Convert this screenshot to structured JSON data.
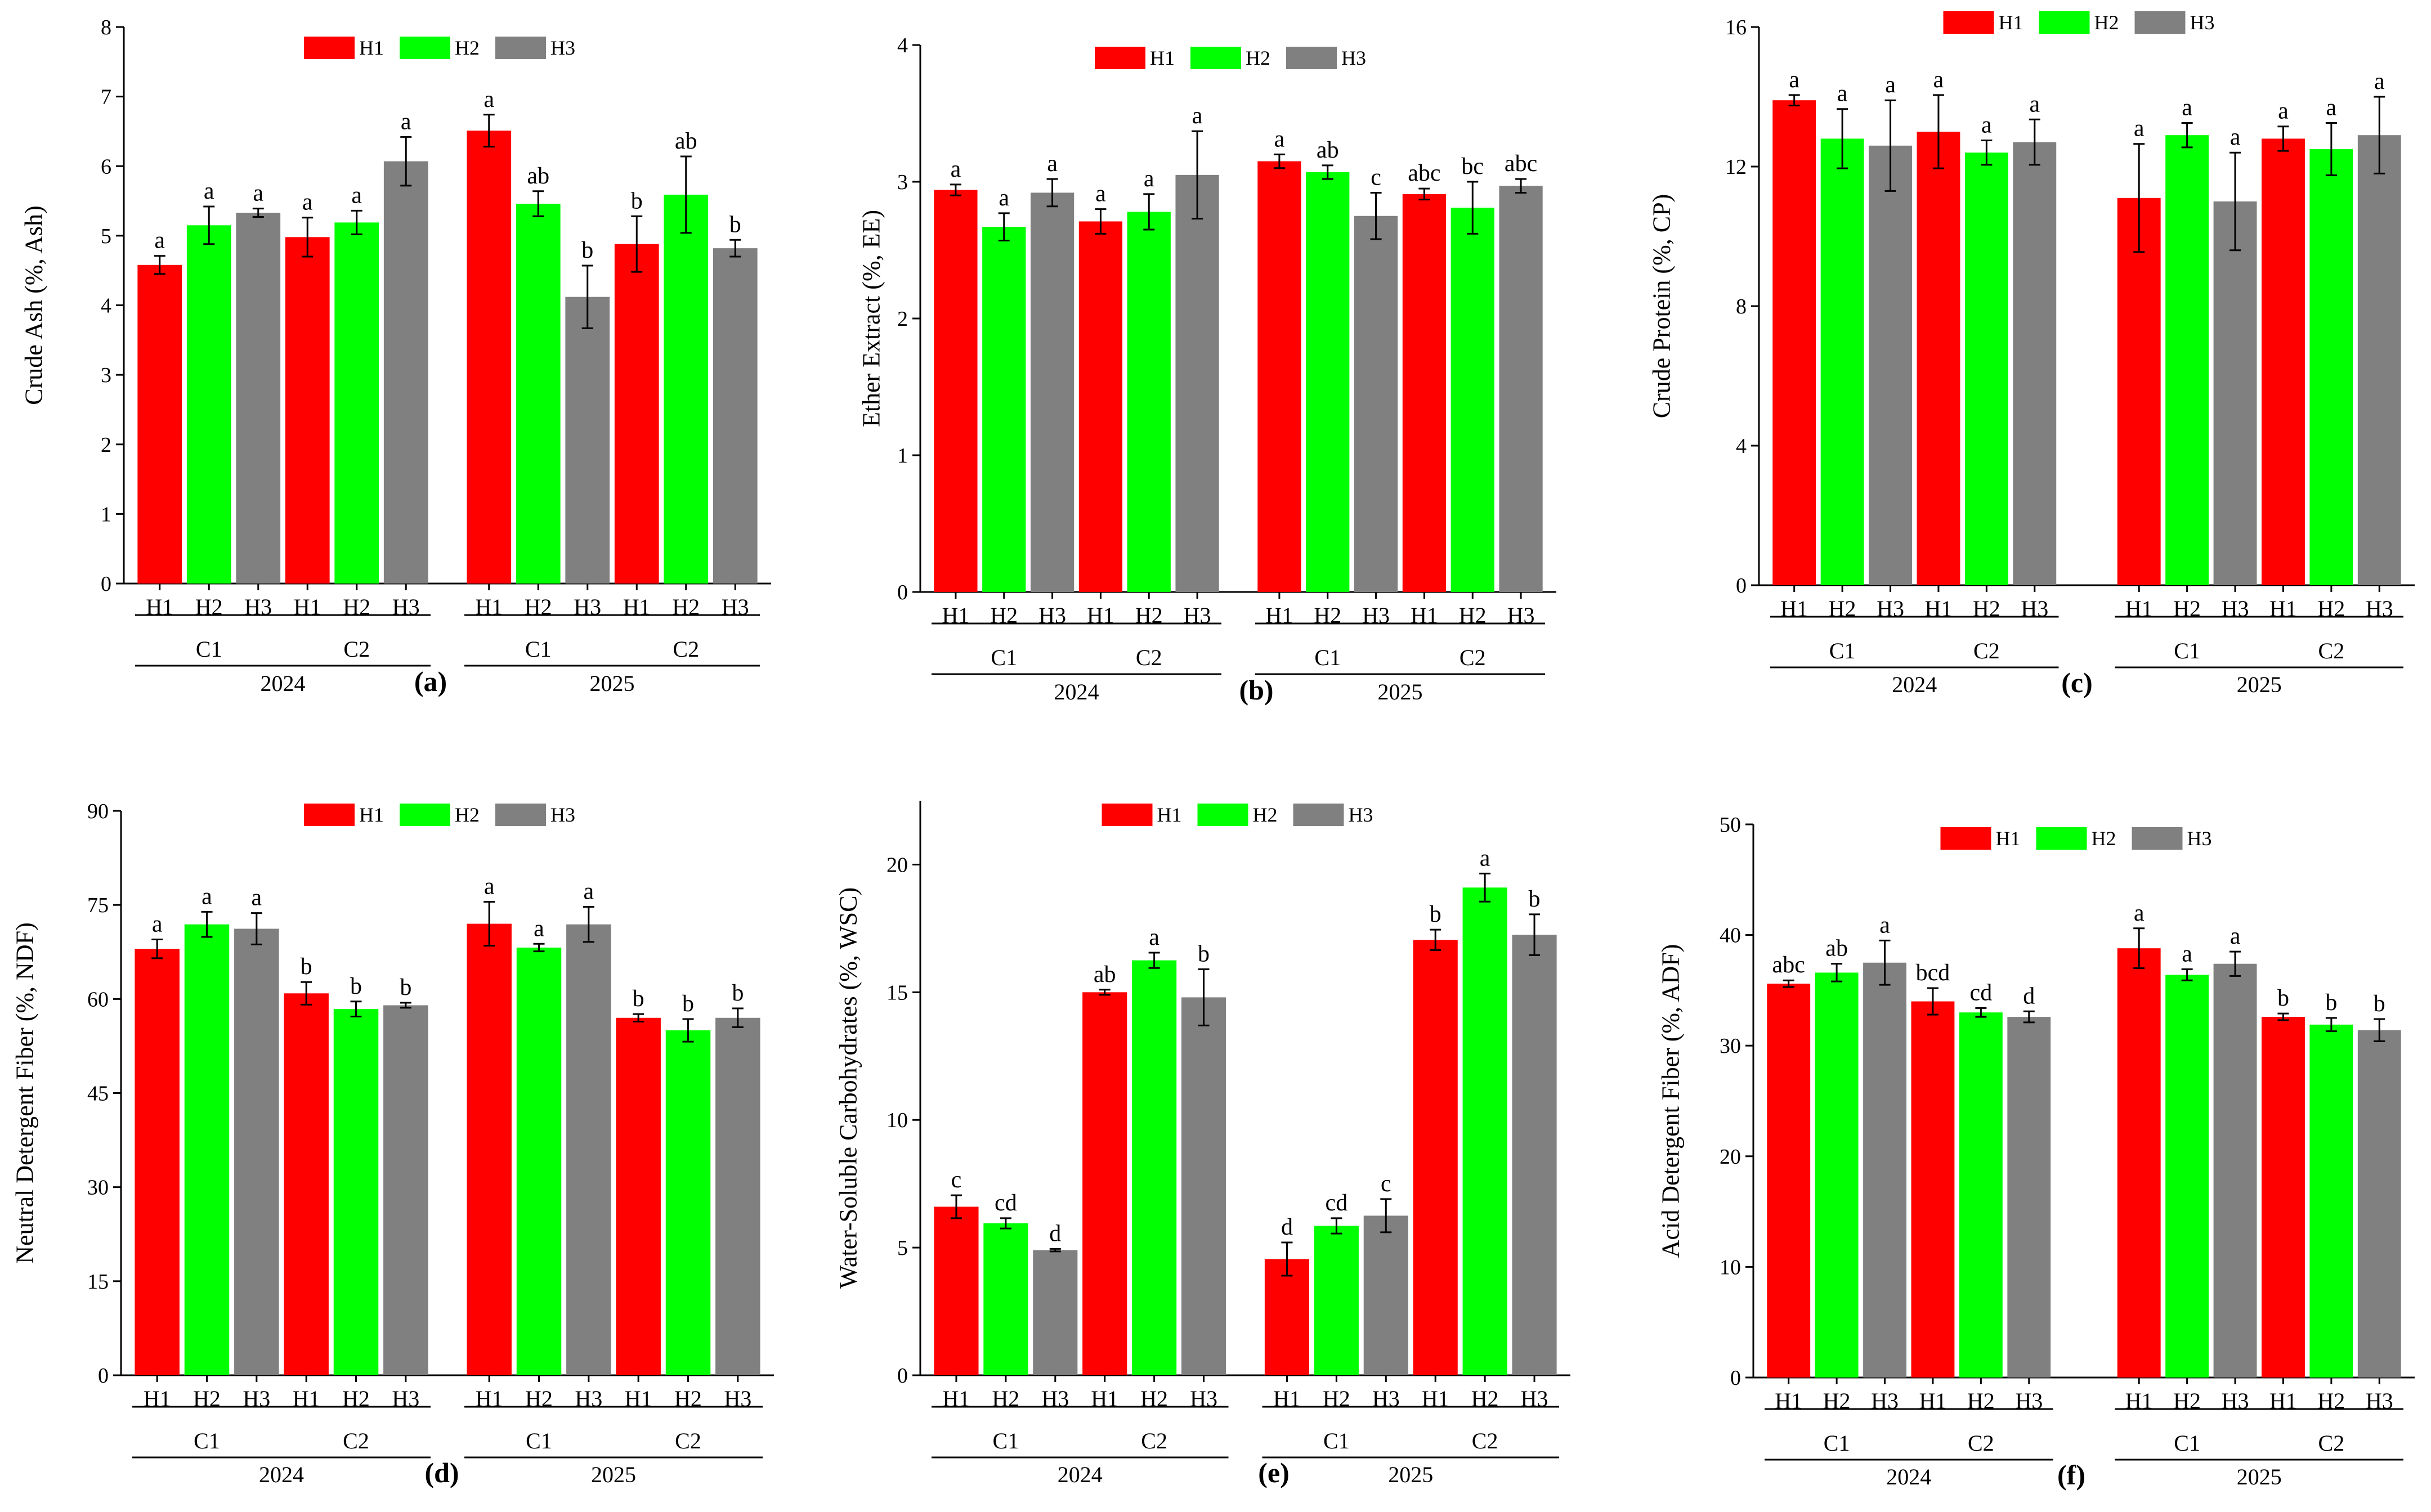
{
  "colors": {
    "H1": "#ff0000",
    "H2": "#00ff00",
    "H3": "#808080"
  },
  "chart_data": [
    {
      "type": "bar",
      "panel_label": "(a)",
      "ylabel": "Crude Ash (%, Ash)",
      "ylim": [
        0,
        8
      ],
      "yticks": [
        "0",
        "1",
        "2",
        "3",
        "4",
        "5",
        "6",
        "7",
        "8"
      ],
      "legend": [
        "H1",
        "H2",
        "H3"
      ],
      "years": [
        "2024",
        "2025"
      ],
      "cuttings": [
        "C1",
        "C2"
      ],
      "categories": [
        "H1",
        "H2",
        "H3"
      ],
      "groups": [
        {
          "year": "2024",
          "cutting": "C1",
          "values": [
            4.58,
            5.15,
            5.33
          ],
          "errors": [
            0.13,
            0.27,
            0.06
          ],
          "letters": [
            "a",
            "a",
            "a"
          ]
        },
        {
          "year": "2024",
          "cutting": "C2",
          "values": [
            4.98,
            5.19,
            6.07
          ],
          "errors": [
            0.28,
            0.17,
            0.35
          ],
          "letters": [
            "a",
            "a",
            "a"
          ]
        },
        {
          "year": "2025",
          "cutting": "C1",
          "values": [
            6.51,
            5.46,
            4.12
          ],
          "errors": [
            0.23,
            0.18,
            0.45
          ],
          "letters": [
            "a",
            "ab",
            "b"
          ]
        },
        {
          "year": "2025",
          "cutting": "C2",
          "values": [
            4.88,
            5.59,
            4.82
          ],
          "errors": [
            0.4,
            0.55,
            0.12
          ],
          "letters": [
            "b",
            "ab",
            "b"
          ]
        }
      ]
    },
    {
      "type": "bar",
      "panel_label": "(b)",
      "ylabel": "Ether Extract (%, EE)",
      "ylim": [
        0,
        4
      ],
      "yticks": [
        "0",
        "1",
        "2",
        "3",
        "4"
      ],
      "legend": [
        "H1",
        "H2",
        "H3"
      ],
      "years": [
        "2024",
        "2025"
      ],
      "cuttings": [
        "C1",
        "C2"
      ],
      "categories": [
        "H1",
        "H2",
        "H3"
      ],
      "groups": [
        {
          "year": "2024",
          "cutting": "C1",
          "values": [
            2.94,
            2.67,
            2.92
          ],
          "errors": [
            0.04,
            0.1,
            0.1
          ],
          "letters": [
            "a",
            "a",
            "a"
          ]
        },
        {
          "year": "2024",
          "cutting": "C2",
          "values": [
            2.71,
            2.78,
            3.05
          ],
          "errors": [
            0.09,
            0.13,
            0.32
          ],
          "letters": [
            "a",
            "a",
            "a"
          ]
        },
        {
          "year": "2025",
          "cutting": "C1",
          "values": [
            3.15,
            3.07,
            2.75
          ],
          "errors": [
            0.05,
            0.05,
            0.17
          ],
          "letters": [
            "a",
            "ab",
            "c"
          ]
        },
        {
          "year": "2025",
          "cutting": "C2",
          "values": [
            2.91,
            2.81,
            2.97
          ],
          "errors": [
            0.04,
            0.19,
            0.05
          ],
          "letters": [
            "abc",
            "bc",
            "abc"
          ]
        }
      ]
    },
    {
      "type": "bar",
      "panel_label": "(c)",
      "ylabel": "Crude Protein (%, CP)",
      "ylim": [
        0,
        16
      ],
      "yticks": [
        "0",
        "4",
        "8",
        "12",
        "16"
      ],
      "legend": [
        "H1",
        "H2",
        "H3"
      ],
      "years": [
        "2024",
        "2025"
      ],
      "cuttings": [
        "C1",
        "C2"
      ],
      "categories": [
        "H1",
        "H2",
        "H3"
      ],
      "groups": [
        {
          "year": "2024",
          "cutting": "C1",
          "values": [
            13.9,
            12.8,
            12.6
          ],
          "errors": [
            0.15,
            0.85,
            1.3
          ],
          "letters": [
            "a",
            "a",
            "a"
          ]
        },
        {
          "year": "2024",
          "cutting": "C2",
          "values": [
            13.0,
            12.4,
            12.7
          ],
          "errors": [
            1.05,
            0.35,
            0.65
          ],
          "letters": [
            "a",
            "a",
            "a"
          ]
        },
        {
          "year": "2025",
          "cutting": "C1",
          "values": [
            11.1,
            12.9,
            11.0
          ],
          "errors": [
            1.55,
            0.35,
            1.4
          ],
          "letters": [
            "a",
            "a",
            "a"
          ]
        },
        {
          "year": "2025",
          "cutting": "C2",
          "values": [
            12.8,
            12.5,
            12.9
          ],
          "errors": [
            0.35,
            0.75,
            1.1
          ],
          "letters": [
            "a",
            "a",
            "a"
          ]
        }
      ]
    },
    {
      "type": "bar",
      "panel_label": "(d)",
      "ylabel": "Neutral Detergent Fiber (%, NDF)",
      "ylim": [
        0,
        90
      ],
      "yticks": [
        "0",
        "15",
        "30",
        "45",
        "60",
        "75",
        "90"
      ],
      "legend": [
        "H1",
        "H2",
        "H3"
      ],
      "years": [
        "2024",
        "2025"
      ],
      "cuttings": [
        "C1",
        "C2"
      ],
      "categories": [
        "H1",
        "H2",
        "H3"
      ],
      "groups": [
        {
          "year": "2024",
          "cutting": "C1",
          "values": [
            68.0,
            71.9,
            71.2
          ],
          "errors": [
            1.5,
            2.0,
            2.5
          ],
          "letters": [
            "a",
            "a",
            "a"
          ]
        },
        {
          "year": "2024",
          "cutting": "C2",
          "values": [
            60.9,
            58.4,
            59.0
          ],
          "errors": [
            1.8,
            1.2,
            0.4
          ],
          "letters": [
            "b",
            "b",
            "b"
          ]
        },
        {
          "year": "2025",
          "cutting": "C1",
          "values": [
            72.0,
            68.2,
            71.9
          ],
          "errors": [
            3.5,
            0.6,
            2.8
          ],
          "letters": [
            "a",
            "a",
            "a"
          ]
        },
        {
          "year": "2025",
          "cutting": "C2",
          "values": [
            57.0,
            55.0,
            57.0
          ],
          "errors": [
            0.6,
            1.8,
            1.5
          ],
          "letters": [
            "b",
            "b",
            "b"
          ]
        }
      ]
    },
    {
      "type": "bar",
      "panel_label": "(e)",
      "ylabel": "Water-Soluble Carbohydrates (%, WSC)",
      "ylim": [
        0,
        22.5
      ],
      "yticks": [
        "0",
        "5",
        "10",
        "15",
        "20"
      ],
      "legend": [
        "H1",
        "H2",
        "H3"
      ],
      "years": [
        "2024",
        "2025"
      ],
      "cuttings": [
        "C1",
        "C2"
      ],
      "categories": [
        "H1",
        "H2",
        "H3"
      ],
      "groups": [
        {
          "year": "2024",
          "cutting": "C1",
          "values": [
            6.6,
            5.95,
            4.9
          ],
          "errors": [
            0.45,
            0.2,
            0.05
          ],
          "letters": [
            "c",
            "cd",
            "d"
          ]
        },
        {
          "year": "2024",
          "cutting": "C2",
          "values": [
            15.0,
            16.25,
            14.8
          ],
          "errors": [
            0.1,
            0.3,
            1.1
          ],
          "letters": [
            "ab",
            "a",
            "b"
          ]
        },
        {
          "year": "2025",
          "cutting": "C1",
          "values": [
            4.55,
            5.85,
            6.25
          ],
          "errors": [
            0.65,
            0.3,
            0.65
          ],
          "letters": [
            "d",
            "cd",
            "c"
          ]
        },
        {
          "year": "2025",
          "cutting": "C2",
          "values": [
            17.05,
            19.1,
            17.25
          ],
          "errors": [
            0.4,
            0.55,
            0.8
          ],
          "letters": [
            "b",
            "a",
            "b"
          ]
        }
      ]
    },
    {
      "type": "bar",
      "panel_label": "(f)",
      "ylabel": "Acid Detergent Fiber (%, ADF)",
      "ylim": [
        0,
        50
      ],
      "yticks": [
        "0",
        "10",
        "20",
        "30",
        "40",
        "50"
      ],
      "legend": [
        "H1",
        "H2",
        "H3"
      ],
      "years": [
        "2024",
        "2025"
      ],
      "cuttings": [
        "C1",
        "C2"
      ],
      "categories": [
        "H1",
        "H2",
        "H3"
      ],
      "groups": [
        {
          "year": "2024",
          "cutting": "C1",
          "values": [
            35.6,
            36.6,
            37.5
          ],
          "errors": [
            0.3,
            0.8,
            2.0
          ],
          "letters": [
            "abc",
            "ab",
            "a"
          ]
        },
        {
          "year": "2024",
          "cutting": "C2",
          "values": [
            34.0,
            33.0,
            32.6
          ],
          "errors": [
            1.2,
            0.4,
            0.5
          ],
          "letters": [
            "bcd",
            "cd",
            "d"
          ]
        },
        {
          "year": "2025",
          "cutting": "C1",
          "values": [
            38.8,
            36.4,
            37.4
          ],
          "errors": [
            1.8,
            0.5,
            1.1
          ],
          "letters": [
            "a",
            "a",
            "a"
          ]
        },
        {
          "year": "2025",
          "cutting": "C2",
          "values": [
            32.6,
            31.9,
            31.4
          ],
          "errors": [
            0.3,
            0.6,
            1.0
          ],
          "letters": [
            "b",
            "b",
            "b"
          ]
        }
      ]
    }
  ]
}
